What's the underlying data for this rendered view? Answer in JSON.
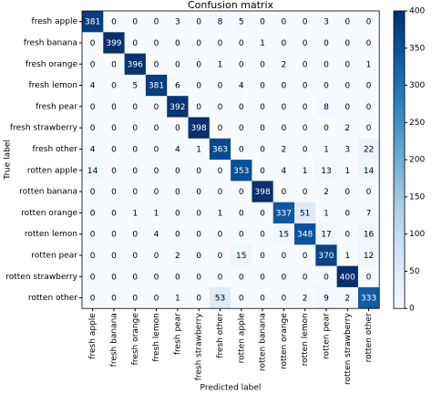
{
  "chart_data": {
    "type": "heatmap",
    "title": "Confusion matrix",
    "x_label": "Predicted label",
    "y_label": "True label",
    "x_categories": [
      "fresh apple",
      "fresh banana",
      "fresh orange",
      "fresh lemon",
      "fresh pear",
      "fresh strawberry",
      "fresh other",
      "rotten apple",
      "rotten banana",
      "rotten orange",
      "rotten lemon",
      "rotten pear",
      "rotten strawberry",
      "rotten other"
    ],
    "y_categories": [
      "fresh apple",
      "fresh banana",
      "fresh orange",
      "fresh lemon",
      "fresh pear",
      "fresh strawberry",
      "fresh other",
      "rotten apple",
      "rotten banana",
      "rotten orange",
      "rotten lemon",
      "rotten pear",
      "rotten strawberry",
      "rotten other"
    ],
    "values": [
      [
        381,
        0,
        0,
        0,
        3,
        0,
        8,
        5,
        0,
        0,
        0,
        3,
        0,
        0
      ],
      [
        0,
        399,
        0,
        0,
        0,
        0,
        0,
        0,
        1,
        0,
        0,
        0,
        0,
        0
      ],
      [
        0,
        0,
        396,
        0,
        0,
        0,
        1,
        0,
        0,
        2,
        0,
        0,
        0,
        1
      ],
      [
        4,
        0,
        5,
        381,
        6,
        0,
        0,
        4,
        0,
        0,
        0,
        0,
        0,
        0
      ],
      [
        0,
        0,
        0,
        0,
        392,
        0,
        0,
        0,
        0,
        0,
        0,
        8,
        0,
        0
      ],
      [
        0,
        0,
        0,
        0,
        0,
        398,
        0,
        0,
        0,
        0,
        0,
        0,
        2,
        0
      ],
      [
        4,
        0,
        0,
        0,
        4,
        1,
        363,
        0,
        0,
        2,
        0,
        1,
        3,
        22
      ],
      [
        14,
        0,
        0,
        0,
        0,
        0,
        0,
        353,
        0,
        4,
        1,
        13,
        1,
        14
      ],
      [
        0,
        0,
        0,
        0,
        0,
        0,
        0,
        0,
        398,
        0,
        0,
        2,
        0,
        0
      ],
      [
        0,
        0,
        1,
        1,
        0,
        0,
        1,
        0,
        0,
        337,
        51,
        1,
        0,
        7
      ],
      [
        0,
        0,
        0,
        4,
        0,
        0,
        0,
        0,
        0,
        15,
        348,
        17,
        0,
        16
      ],
      [
        0,
        0,
        0,
        0,
        2,
        0,
        0,
        15,
        0,
        0,
        0,
        370,
        1,
        12
      ],
      [
        0,
        0,
        0,
        0,
        0,
        0,
        0,
        0,
        0,
        0,
        0,
        0,
        400,
        0
      ],
      [
        0,
        0,
        0,
        0,
        1,
        0,
        53,
        0,
        0,
        0,
        2,
        9,
        2,
        333
      ]
    ],
    "colormap": "Blues",
    "colorbar_lim": [
      0,
      400
    ],
    "colorbar_ticks": [
      0,
      50,
      100,
      150,
      200,
      250,
      300,
      350,
      400
    ]
  }
}
